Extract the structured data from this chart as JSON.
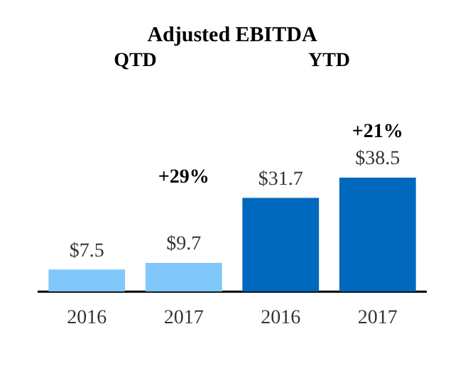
{
  "chart_data": {
    "type": "bar",
    "title": "Adjusted EBITDA",
    "categories": [
      "2016",
      "2017",
      "2016",
      "2017"
    ],
    "values": [
      7.5,
      9.7,
      31.7,
      38.5
    ],
    "colors": [
      "#80c8fa",
      "#80c8fa",
      "#0068bd",
      "#0068bd"
    ],
    "value_labels": [
      "$7.5",
      "$9.7",
      "$31.7",
      "$38.5"
    ],
    "annotations": [
      "QTD",
      "YTD",
      "+29%",
      "+21%"
    ],
    "grid": false,
    "legend": false
  }
}
